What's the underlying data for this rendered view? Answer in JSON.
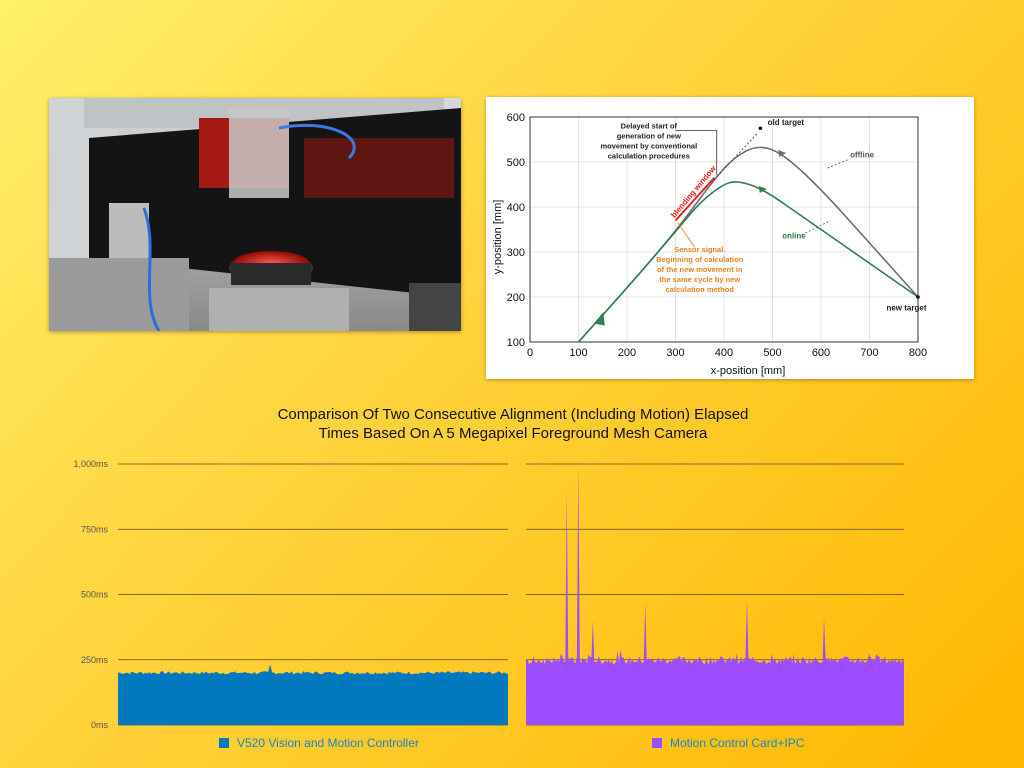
{
  "colors": {
    "background_top": "#fff06a",
    "background_bottom": "#ffb700",
    "series_blue": "#0079bf",
    "series_purple": "#9c4dff",
    "trajectory_gray": "#6e6e6e",
    "trajectory_green": "#2e7d4f",
    "annotation_red": "#e8201c",
    "annotation_orange": "#e8821c"
  },
  "main_title": {
    "line1": "Comparison Of Two Consecutive Alignment (Including Motion) Elapsed",
    "line2": "Times Based On A 5 Megapixel Foreground Mesh Camera"
  },
  "chart_data": [
    {
      "type": "line",
      "xlabel": "x-position [mm]",
      "ylabel": "y-position [mm]",
      "xlim": [
        0,
        800
      ],
      "ylim": [
        100,
        600
      ],
      "x_ticks": [
        "0",
        "100",
        "200",
        "300",
        "400",
        "500",
        "600",
        "700",
        "800"
      ],
      "y_ticks": [
        "100",
        "200",
        "300",
        "400",
        "500",
        "600"
      ],
      "grid": true,
      "series": [
        {
          "name": "offline",
          "x": [
            100,
            200,
            300,
            375,
            420,
            470,
            520,
            600,
            700,
            800
          ],
          "y": [
            100,
            220,
            345,
            455,
            510,
            538,
            520,
            440,
            320,
            200
          ]
        },
        {
          "name": "online",
          "x": [
            100,
            200,
            300,
            350,
            400,
            430,
            480,
            560,
            680,
            800
          ],
          "y": [
            100,
            220,
            345,
            410,
            452,
            458,
            440,
            380,
            290,
            200
          ]
        }
      ],
      "annotations": {
        "old_target": "old target",
        "new_target": "new target",
        "offline": "offline",
        "online": "online",
        "blending_window": "blending window",
        "delayed_start": [
          "Delayed start of",
          "generation of new",
          "movement by conventional",
          "calculation procedures"
        ],
        "sensor_signal": [
          "Sensor signal.",
          "Beginning of calculation",
          "of the new movement in",
          "the same cycle by new",
          "calculation method"
        ]
      },
      "old_target_point": [
        475,
        575
      ],
      "new_target_point": [
        800,
        200
      ]
    },
    {
      "type": "area",
      "y_ticks": [
        "0ms",
        "250ms",
        "500ms",
        "750ms",
        "1,000ms"
      ],
      "ylim": [
        0,
        1000
      ],
      "grid": true,
      "series": [
        {
          "name": "V520 Vision and Motion Controller",
          "baseline_ms": 200,
          "peak_ms": 232
        },
        {
          "name": "Motion Control Card+IPC",
          "baseline_ms": 245,
          "spikes_ms": [
            900,
            995,
            400,
            470,
            480,
            410
          ]
        }
      ]
    }
  ]
}
